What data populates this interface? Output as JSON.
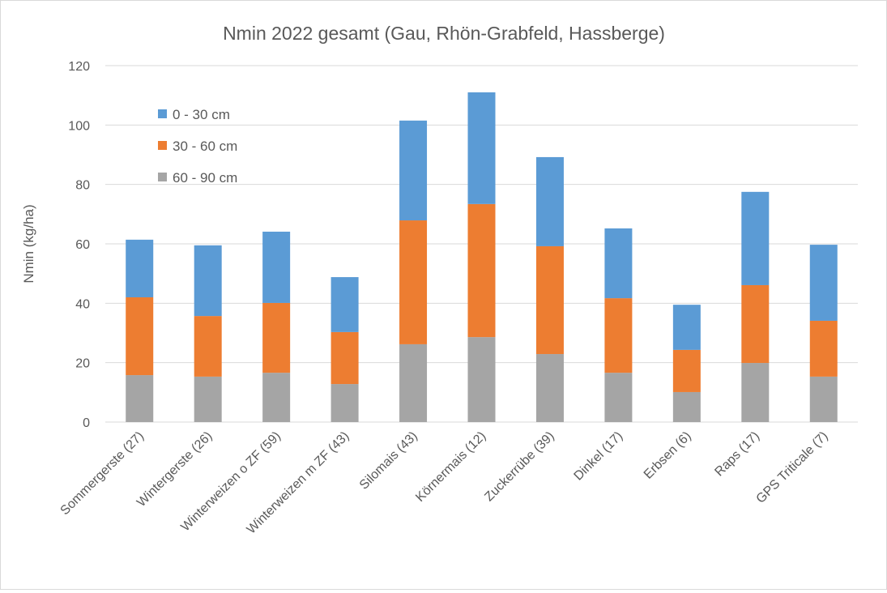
{
  "chart_data": {
    "type": "bar",
    "stacked": true,
    "title": "Nmin 2022 gesamt (Gau, Rhön-Grabfeld, Hassberge)",
    "xlabel": "",
    "ylabel": "Nmin (kg/ha)",
    "ylim": [
      0,
      120
    ],
    "yticks": [
      0,
      20,
      40,
      60,
      80,
      100,
      120
    ],
    "grid": true,
    "legend_position": "top-left",
    "categories": [
      "Sommergerste (27)",
      "Wintergerste (26)",
      "Winterweizen o ZF (59)",
      "Winterweizen m ZF (43)",
      "Silomais (43)",
      "Körnermais (12)",
      "Zuckerrübe (39)",
      "Dinkel (17)",
      "Erbsen (6)",
      "Raps (17)",
      "GPS Triticale (7)"
    ],
    "series": [
      {
        "name": "60 - 90 cm",
        "color": "#A5A5A5",
        "values": [
          15.8,
          15.3,
          16.6,
          12.8,
          26.2,
          28.6,
          22.9,
          16.6,
          10.1,
          19.9,
          15.3
        ]
      },
      {
        "name": "30 - 60 cm",
        "color": "#ED7D31",
        "values": [
          26.2,
          20.4,
          23.5,
          17.5,
          41.7,
          44.8,
          36.3,
          25.1,
          14.2,
          26.2,
          18.8
        ]
      },
      {
        "name": "0 - 30 cm",
        "color": "#5B9BD5",
        "values": [
          19.4,
          23.8,
          24.0,
          18.5,
          33.6,
          37.6,
          30.0,
          23.5,
          15.2,
          31.4,
          25.6
        ]
      }
    ],
    "legend_order": [
      2,
      1,
      0
    ]
  }
}
